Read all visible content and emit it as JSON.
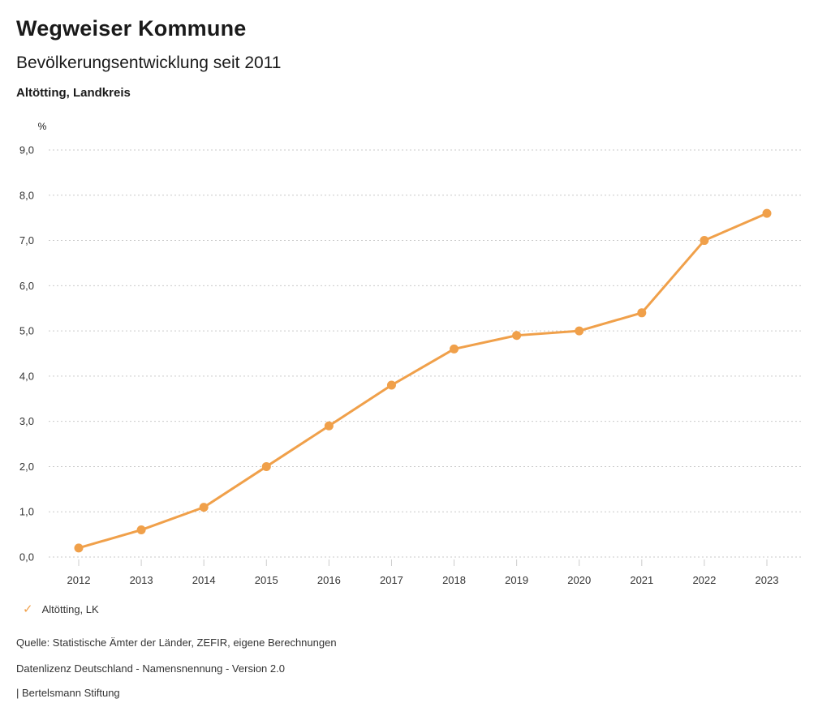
{
  "header": {
    "title": "Wegweiser Kommune",
    "subtitle": "Bevölkerungsentwicklung seit 2011",
    "region": "Altötting, Landkreis"
  },
  "chart_data": {
    "type": "line",
    "title": "Bevölkerungsentwicklung seit 2011",
    "unit_label": "%",
    "x": [
      2012,
      2013,
      2014,
      2015,
      2016,
      2017,
      2018,
      2019,
      2020,
      2021,
      2022,
      2023
    ],
    "series": [
      {
        "name": "Altötting, LK",
        "values": [
          0.2,
          0.6,
          1.1,
          2.0,
          2.9,
          3.8,
          4.6,
          4.9,
          5.0,
          5.4,
          7.0,
          7.6
        ],
        "color": "#F0A04A"
      }
    ],
    "ylim": [
      0,
      9
    ],
    "ytick_step": 1,
    "ytick_labels": [
      "0,0",
      "1,0",
      "2,0",
      "3,0",
      "4,0",
      "5,0",
      "6,0",
      "7,0",
      "8,0",
      "9,0"
    ],
    "decimal_separator": ",",
    "grid": "dotted-horizontal",
    "legend_position": "bottom-left"
  },
  "legend": {
    "check_icon": "✓",
    "label": "Altötting, LK"
  },
  "footer": {
    "source": "Quelle: Statistische Ämter der Länder, ZEFIR, eigene Berechnungen",
    "license": "Datenlizenz Deutschland - Namensnennung - Version 2.0",
    "attribution": "| Bertelsmann Stiftung"
  },
  "colors": {
    "accent": "#F0A04A",
    "grid": "#c9c9c9",
    "tick": "#cccccc",
    "text": "#1a1a1a",
    "muted": "#333333"
  }
}
